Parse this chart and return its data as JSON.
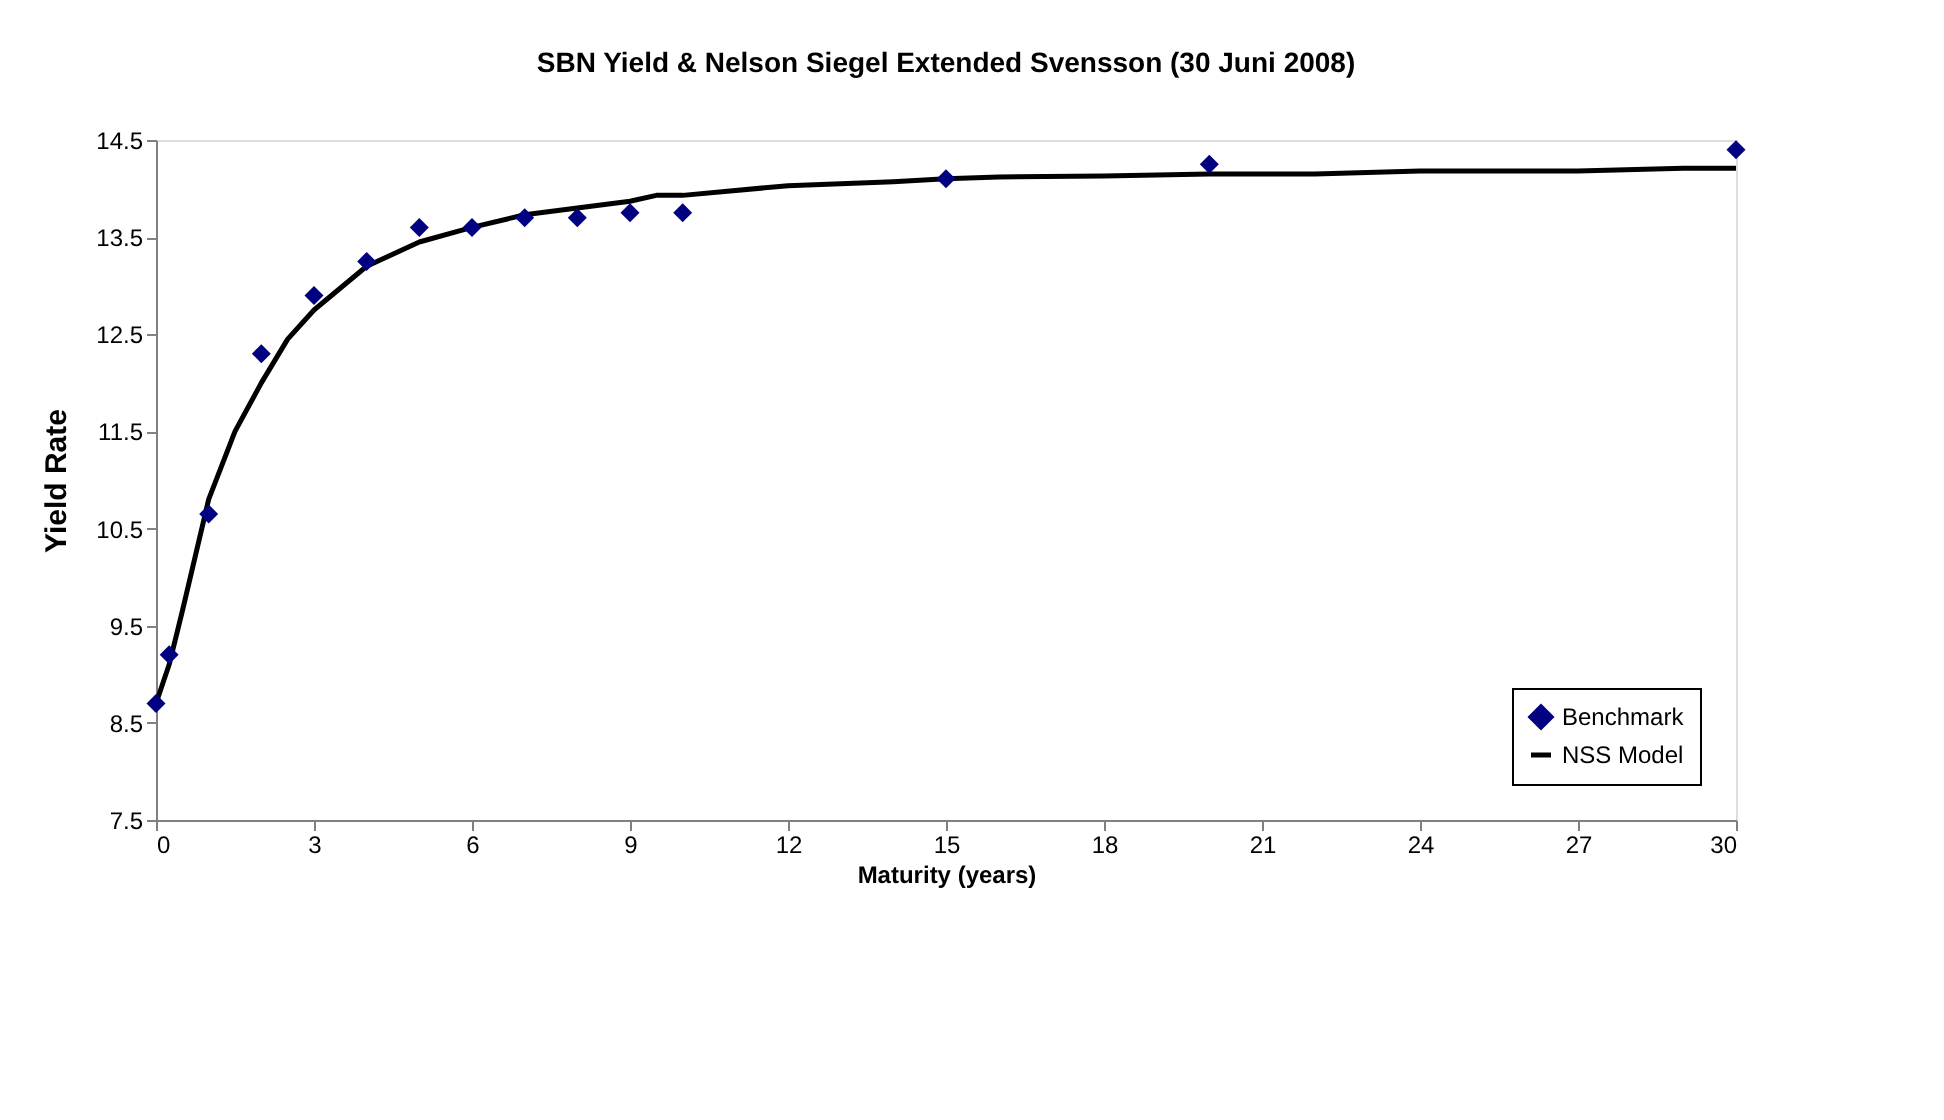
{
  "chart_data": {
    "type": "scatter",
    "title": "SBN Yield & Nelson Siegel Extended Svensson (30 Juni 2008)",
    "xlabel": "Maturity (years)",
    "ylabel": "Yield Rate",
    "xlim": [
      0,
      30
    ],
    "xticks": [
      0,
      3,
      6,
      9,
      12,
      15,
      18,
      21,
      24,
      27,
      30
    ],
    "ylim": [
      7.5,
      14.5
    ],
    "yticks": [
      7.5,
      8.5,
      9.5,
      10.5,
      11.5,
      12.5,
      13.5,
      14.5
    ],
    "grid": false,
    "legend": "bottom right",
    "series": [
      {
        "name": "Benchmark",
        "type": "scatter",
        "marker": "diamond",
        "color": "#000080",
        "x": [
          0,
          0.25,
          1,
          2,
          3,
          4,
          5,
          6,
          7,
          8,
          9,
          10,
          15,
          20,
          30
        ],
        "values": [
          8.7,
          9.2,
          10.65,
          12.3,
          12.9,
          13.25,
          13.6,
          13.6,
          13.7,
          13.7,
          13.75,
          13.75,
          14.1,
          14.25,
          14.4
        ]
      },
      {
        "name": "NSS Model",
        "type": "line",
        "marker": "none",
        "line_style": "solid",
        "color": "#000000",
        "x": [
          0,
          0.25,
          0.5,
          1,
          1.5,
          2,
          2.5,
          3,
          4,
          5,
          6,
          7,
          8,
          9,
          9.5,
          10,
          12,
          14,
          15,
          16,
          18,
          20,
          22,
          24,
          27,
          29,
          30
        ],
        "values": [
          8.7,
          9.1,
          9.65,
          10.8,
          11.5,
          12.0,
          12.45,
          12.75,
          13.2,
          13.45,
          13.6,
          13.73,
          13.8,
          13.87,
          13.93,
          13.93,
          14.03,
          14.07,
          14.1,
          14.12,
          14.13,
          14.15,
          14.15,
          14.18,
          14.18,
          14.21,
          14.21
        ]
      }
    ]
  }
}
